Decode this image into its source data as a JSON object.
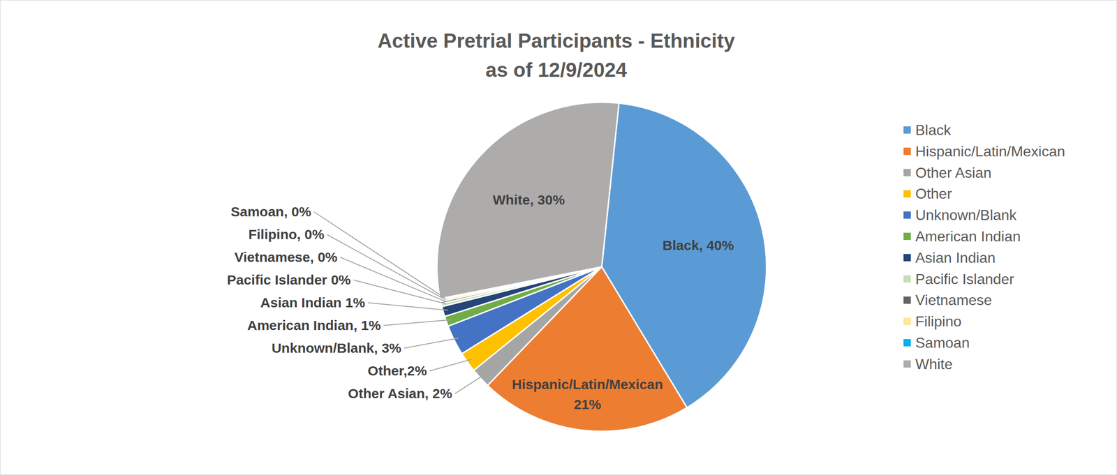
{
  "chart_data": {
    "type": "pie",
    "title": "Active Pretrial Participants - Ethnicity\nas of 12/9/2024",
    "categories": [
      "Black",
      "Hispanic/Latin/Mexican",
      "Other Asian",
      "Other",
      "Unknown/Blank",
      "American Indian",
      "Asian Indian",
      "Pacific Islander",
      "Vietnamese",
      "Filipino",
      "Samoan",
      "White"
    ],
    "values": [
      40,
      21,
      2,
      2,
      3,
      1,
      1,
      0.3,
      0.2,
      0.2,
      0.1,
      30
    ],
    "value_labels": [
      "Black, 40%",
      "Hispanic/Latin/Mexican\n21%",
      "Other Asian, 2%",
      "Other,2%",
      "Unknown/Blank, 3%",
      "American Indian, 1%",
      "Asian Indian 1%",
      "Pacific Islander 0%",
      "Vietnamese, 0%",
      "Filipino, 0%",
      "Samoan, 0%",
      "White, 30%"
    ],
    "colors": [
      "#5b9bd5",
      "#ed7d31",
      "#a5a5a5",
      "#ffc000",
      "#4472c4",
      "#70ad47",
      "#264478",
      "#c5e0b4",
      "#636363",
      "#ffe699",
      "#00b0f0",
      "#aeabab"
    ],
    "data_labels": true,
    "legend": "right"
  }
}
